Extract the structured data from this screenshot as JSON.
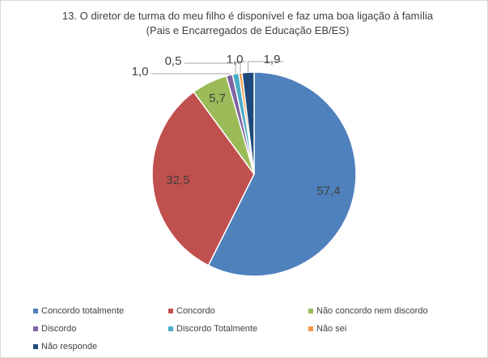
{
  "chart_data": {
    "type": "pie",
    "title": "13. O diretor de turma do meu filho é disponível e faz uma boa ligação à família (Pais e Encarregados de Educação EB/ES)",
    "categories": [
      "Concordo totalmente",
      "Concordo",
      "Não concordo nem discordo",
      "Discordo",
      "Discordo Totalmente",
      "Não sei",
      "Não responde"
    ],
    "values": [
      57.4,
      32.5,
      5.7,
      1.0,
      1.0,
      0.5,
      1.9
    ],
    "value_labels": [
      "57,4",
      "32,5",
      "5,7",
      "1,0",
      "1,0",
      "0,5",
      "1,9"
    ],
    "colors": [
      "#4f81bd",
      "#c0504d",
      "#9bbb59",
      "#8064a2",
      "#4bacc6",
      "#f79646",
      "#1f497d"
    ],
    "legend": "bottom"
  }
}
